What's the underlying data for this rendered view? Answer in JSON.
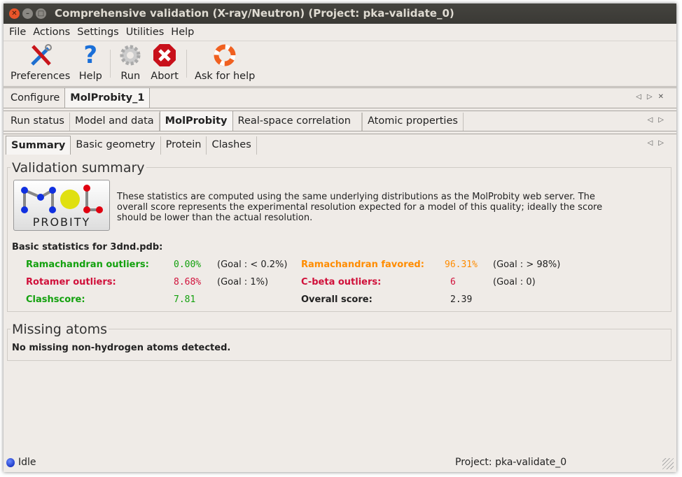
{
  "window": {
    "title": "Comprehensive validation (X-ray/Neutron) (Project: pka-validate_0)"
  },
  "menu": [
    "File",
    "Actions",
    "Settings",
    "Utilities",
    "Help"
  ],
  "toolbar": {
    "preferences": "Preferences",
    "help": "Help",
    "run": "Run",
    "abort": "Abort",
    "ask": "Ask for help"
  },
  "tabs1": [
    "Configure",
    "MolProbity_1"
  ],
  "tabs2": [
    "Run status",
    "Model and data",
    "MolProbity",
    "Real-space correlation",
    "Atomic properties"
  ],
  "tabs3": [
    "Summary",
    "Basic geometry",
    "Protein",
    "Clashes"
  ],
  "summary": {
    "title": "Validation summary",
    "logo_text": "MOL PROBITY",
    "description": "These statistics are computed using the same underlying distributions as the MolProbity web server.  The overall score represents the experimental resolution expected for a model of this quality; ideally the score should be lower than the actual resolution.",
    "basic_header": "Basic statistics for 3dnd.pdb:",
    "rama_out": {
      "label": "Ramachandran outliers:",
      "value": "0.00%",
      "goal": "(Goal : < 0.2%)",
      "color": "#13a10e"
    },
    "rota_out": {
      "label": "Rotamer outliers:",
      "value": "8.68%",
      "goal": "(Goal : 1%)",
      "color": "#d0103a"
    },
    "clash": {
      "label": "Clashscore:",
      "value": "7.81",
      "color": "#13a10e"
    },
    "rama_fav": {
      "label": "Ramachandran favored:",
      "value": "96.31%",
      "goal": "(Goal : > 98%)",
      "color": "#ff8c00"
    },
    "cbeta": {
      "label": "C-beta outliers:",
      "value": "6",
      "goal": "(Goal : 0)",
      "color": "#d0103a"
    },
    "overall": {
      "label": "Overall score:",
      "value": "2.39"
    }
  },
  "missing": {
    "title": "Missing atoms",
    "text": "No missing non-hydrogen atoms detected."
  },
  "status": {
    "state": "Idle",
    "project": "Project: pka-validate_0"
  }
}
